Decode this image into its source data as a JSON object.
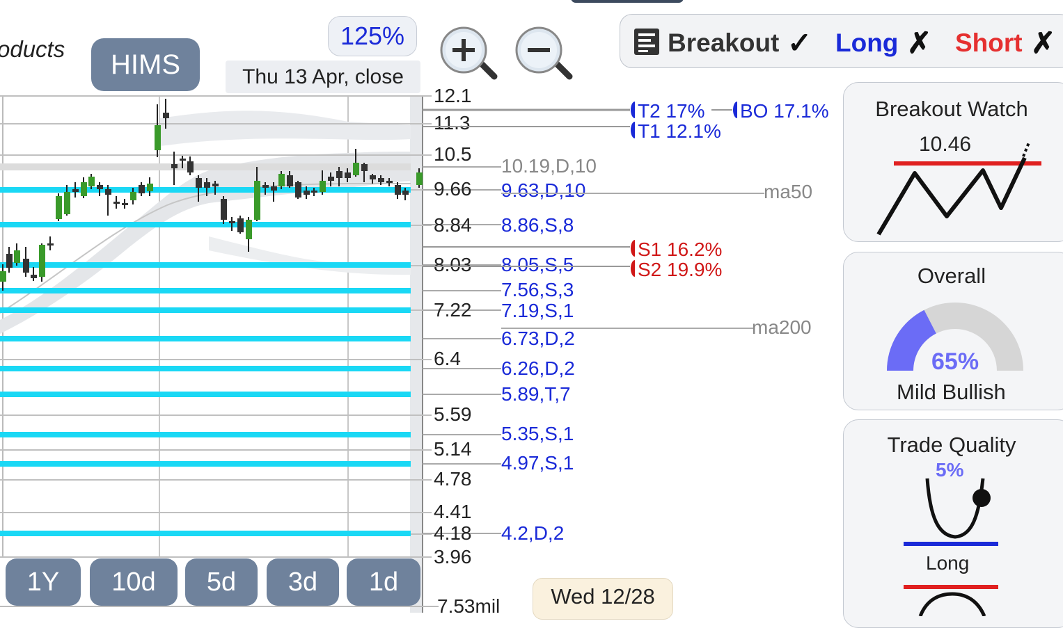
{
  "header": {
    "product_text": "oducts",
    "ticker": "HIMS",
    "zoom_level": "125%",
    "close_date": "Thu 13 Apr, close"
  },
  "signals": {
    "breakout_label": "Breakout",
    "breakout_mark": "✓",
    "long_label": "Long",
    "long_mark": "✗",
    "short_label": "Short",
    "short_mark": "✗",
    "colors": {
      "breakout": "#333333",
      "long": "#1a2ad8",
      "short": "#e53030"
    }
  },
  "price_axis": [
    "12.1",
    "11.3",
    "10.5",
    "9.66",
    "8.84",
    "8.03",
    "7.22",
    "6.4",
    "5.59",
    "5.14",
    "4.78",
    "4.41",
    "4.18",
    "3.96"
  ],
  "volume_label": "7.53mil",
  "levels": [
    "10.19,D,10",
    "9.63,D,10",
    "8.86,S,8",
    "8.05,S,5",
    "7.56,S,3",
    "7.19,S,1",
    "6.73,D,2",
    "6.26,D,2",
    "5.89,T,7",
    "5.35,S,1",
    "4.97,S,1",
    "4.2,D,2"
  ],
  "markers": {
    "t2": "T2 17%",
    "bo": "BO 17.1%",
    "t1": "T1 12.1%",
    "s1": "S1 16.2%",
    "s2": "S2 19.9%",
    "ma50": "ma50",
    "ma200": "ma200"
  },
  "period_buttons": [
    "1Y",
    "10d",
    "5d",
    "3d",
    "1d"
  ],
  "bottom_date": "Wed 12/28",
  "cards": {
    "breakout_watch": {
      "title": "Breakout Watch",
      "value": "10.46"
    },
    "overall": {
      "title": "Overall",
      "percent": "65%",
      "label": "Mild Bullish",
      "gauge_fraction": 0.65
    },
    "trade_quality": {
      "title": "Trade Quality",
      "percent": "5%",
      "label": "Long"
    }
  },
  "colors": {
    "support_line": "#1ad8f5",
    "candle_up": "#3a9a2a",
    "candle_down": "#333333",
    "button_bg": "#6f829c"
  }
}
